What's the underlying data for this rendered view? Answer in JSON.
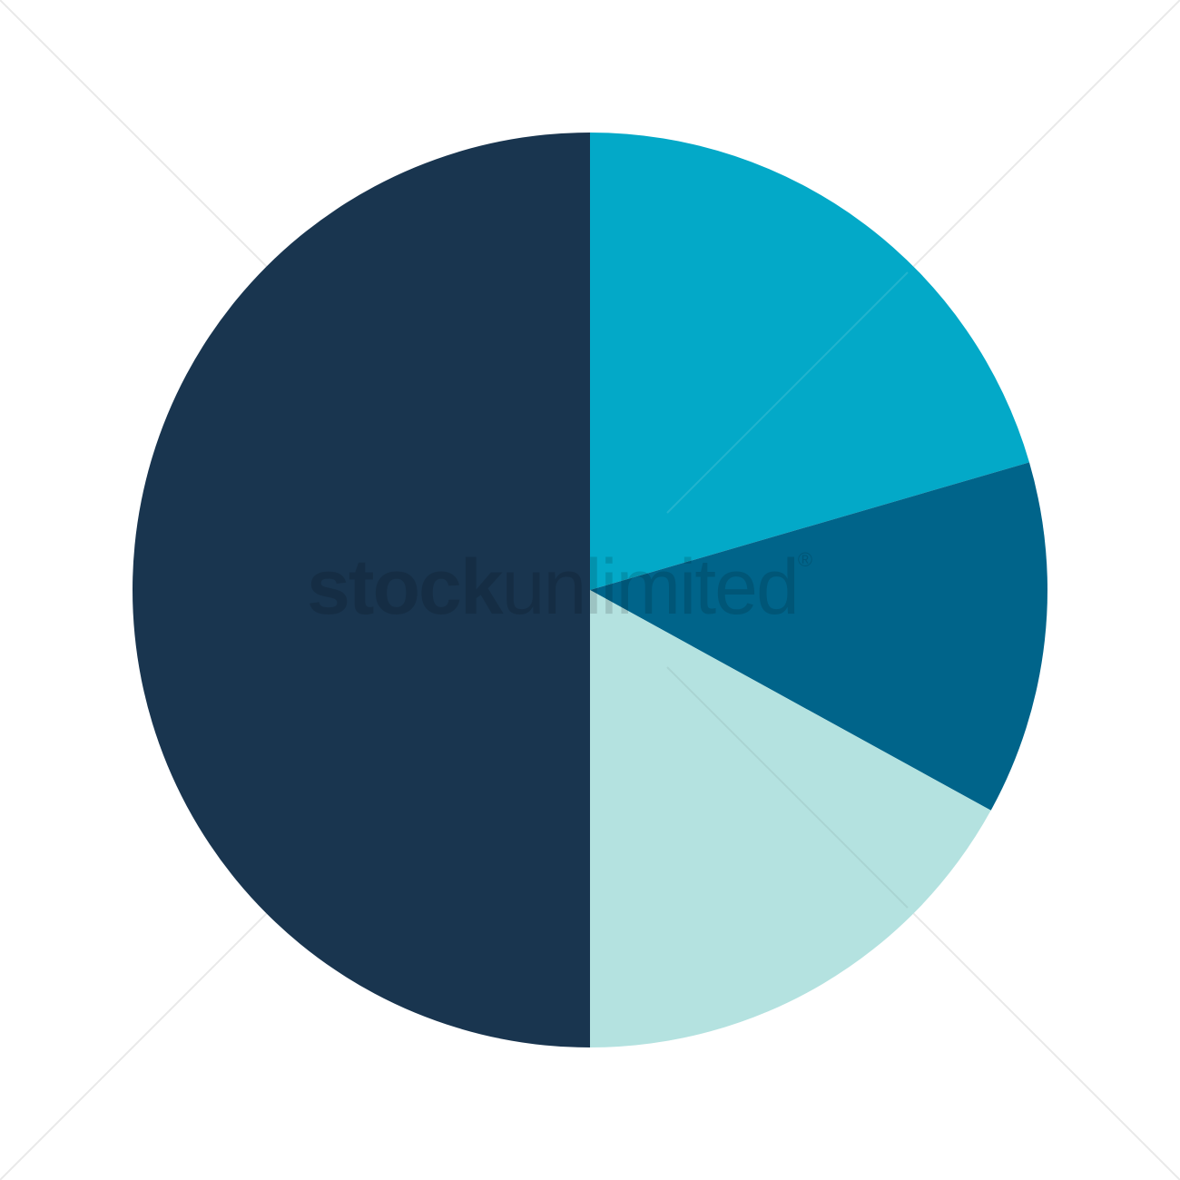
{
  "chart_data": {
    "type": "pie",
    "start_angle": "12 o'clock",
    "direction": "clockwise",
    "slices": [
      {
        "value": 20.5,
        "color": "#03a9c8"
      },
      {
        "value": 12.5,
        "color": "#00648a"
      },
      {
        "value": 17.0,
        "color": "#b4e2e0"
      },
      {
        "value": 50.0,
        "color": "#19354f"
      }
    ]
  },
  "watermark": {
    "bold": "stock",
    "light": "unlimited",
    "mark": "®",
    "color": "#000000"
  }
}
